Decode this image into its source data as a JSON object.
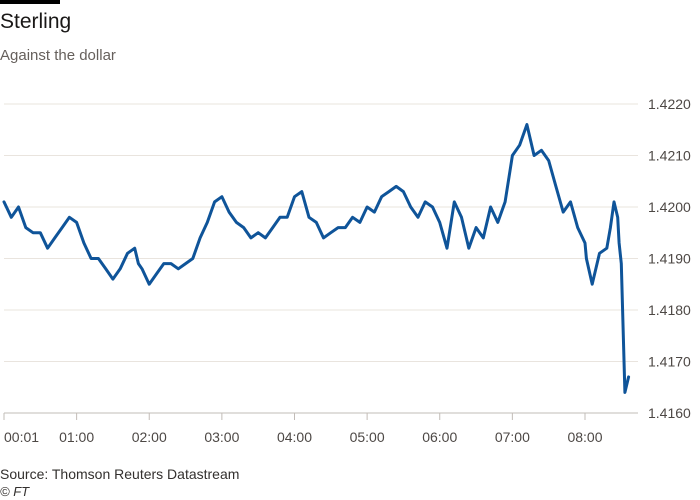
{
  "header": {
    "title": "Sterling",
    "subtitle": "Against the dollar"
  },
  "footer": {
    "source": "Source: Thomson Reuters Datastream",
    "credit": "© FT"
  },
  "colors": {
    "line": "#0f5499",
    "grid": "#e9e4de",
    "axis": "#c2bcb7",
    "topbar": "#000000"
  },
  "chart_data": {
    "type": "line",
    "title": "Sterling",
    "subtitle": "Against the dollar",
    "xlabel": "",
    "ylabel": "",
    "x_unit": "hours",
    "xlim": [
      0.0,
      8.73
    ],
    "ylim": [
      1.416,
      1.422
    ],
    "y_side": "right",
    "grid": true,
    "x_ticks": [
      {
        "value": 0.0,
        "label": "00:01"
      },
      {
        "value": 1.0,
        "label": "01:00"
      },
      {
        "value": 2.0,
        "label": "02:00"
      },
      {
        "value": 3.0,
        "label": "03:00"
      },
      {
        "value": 4.0,
        "label": "04:00"
      },
      {
        "value": 5.0,
        "label": "05:00"
      },
      {
        "value": 6.0,
        "label": "06:00"
      },
      {
        "value": 7.0,
        "label": "07:00"
      },
      {
        "value": 8.0,
        "label": "08:00"
      }
    ],
    "y_ticks": [
      {
        "value": 1.416,
        "label": "1.4160"
      },
      {
        "value": 1.417,
        "label": "1.4170"
      },
      {
        "value": 1.418,
        "label": "1.4180"
      },
      {
        "value": 1.419,
        "label": "1.4190"
      },
      {
        "value": 1.42,
        "label": "1.4200"
      },
      {
        "value": 1.421,
        "label": "1.4210"
      },
      {
        "value": 1.422,
        "label": "1.4220"
      }
    ],
    "series": [
      {
        "color": "#0f5499",
        "x": [
          0.0,
          0.1,
          0.2,
          0.3,
          0.4,
          0.5,
          0.6,
          0.7,
          0.8,
          0.9,
          1.0,
          1.1,
          1.2,
          1.3,
          1.4,
          1.5,
          1.6,
          1.7,
          1.8,
          1.85,
          1.9,
          2.0,
          2.1,
          2.2,
          2.3,
          2.4,
          2.5,
          2.6,
          2.7,
          2.8,
          2.9,
          3.0,
          3.1,
          3.2,
          3.3,
          3.4,
          3.5,
          3.6,
          3.7,
          3.8,
          3.9,
          4.0,
          4.1,
          4.2,
          4.3,
          4.4,
          4.5,
          4.6,
          4.7,
          4.8,
          4.9,
          5.0,
          5.1,
          5.2,
          5.3,
          5.4,
          5.5,
          5.6,
          5.7,
          5.8,
          5.9,
          6.0,
          6.1,
          6.2,
          6.3,
          6.4,
          6.5,
          6.6,
          6.7,
          6.8,
          6.9,
          7.0,
          7.1,
          7.2,
          7.25,
          7.3,
          7.4,
          7.5,
          7.6,
          7.7,
          7.8,
          7.9,
          8.0,
          8.02,
          8.1,
          8.2,
          8.3,
          8.35,
          8.4,
          8.45,
          8.47,
          8.5,
          8.55,
          8.6
        ],
        "y": [
          1.4201,
          1.4198,
          1.42,
          1.4196,
          1.4195,
          1.4195,
          1.4192,
          1.4194,
          1.4196,
          1.4198,
          1.4197,
          1.4193,
          1.419,
          1.419,
          1.4188,
          1.4186,
          1.4188,
          1.4191,
          1.4192,
          1.4189,
          1.4188,
          1.4185,
          1.4187,
          1.4189,
          1.4189,
          1.4188,
          1.4189,
          1.419,
          1.4194,
          1.4197,
          1.4201,
          1.4202,
          1.4199,
          1.4197,
          1.4196,
          1.4194,
          1.4195,
          1.4194,
          1.4196,
          1.4198,
          1.4198,
          1.4202,
          1.4203,
          1.4198,
          1.4197,
          1.4194,
          1.4195,
          1.4196,
          1.4196,
          1.4198,
          1.4197,
          1.42,
          1.4199,
          1.4202,
          1.4203,
          1.4204,
          1.4203,
          1.42,
          1.4198,
          1.4201,
          1.42,
          1.4197,
          1.4192,
          1.4201,
          1.4198,
          1.4192,
          1.4196,
          1.4194,
          1.42,
          1.4197,
          1.4201,
          1.421,
          1.4212,
          1.4216,
          1.4213,
          1.421,
          1.4211,
          1.4209,
          1.4204,
          1.4199,
          1.4201,
          1.4196,
          1.4193,
          1.419,
          1.4185,
          1.4191,
          1.4192,
          1.4196,
          1.4201,
          1.4198,
          1.4193,
          1.4189,
          1.4164,
          1.4167
        ]
      }
    ]
  }
}
